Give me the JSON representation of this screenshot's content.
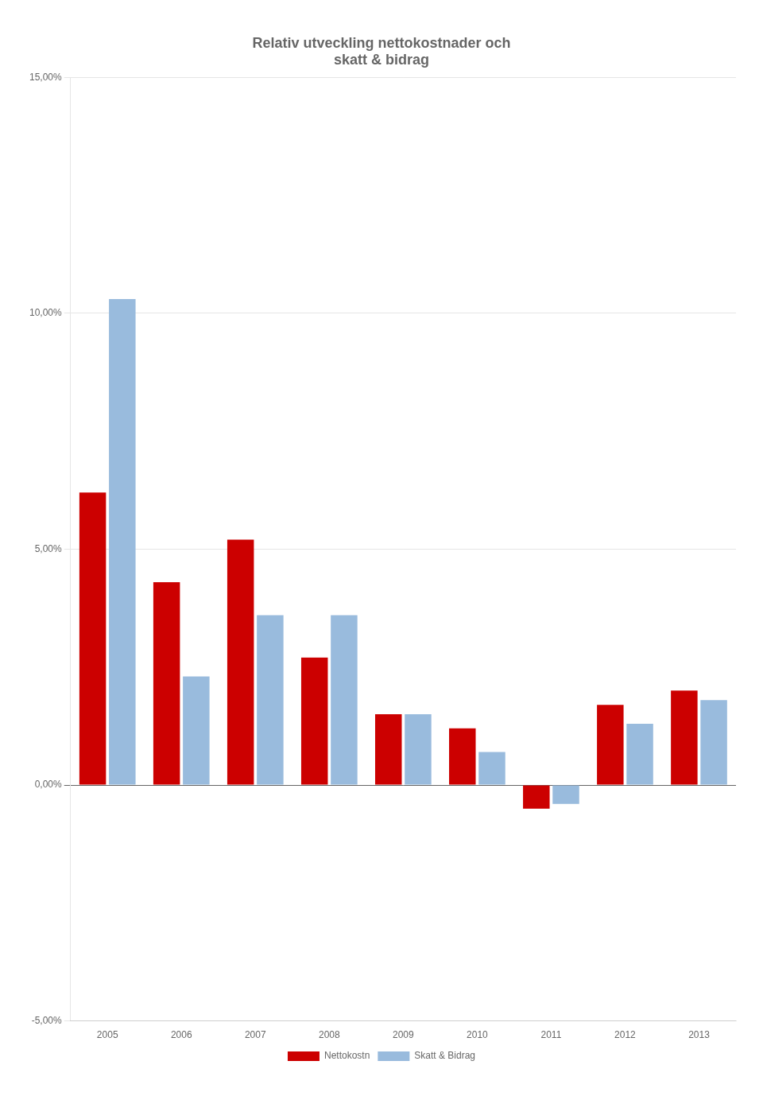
{
  "chart_data": {
    "type": "bar",
    "title": [
      "Relativ utveckling nettokostnader och",
      "skatt & bidrag"
    ],
    "categories": [
      "2005",
      "2006",
      "2007",
      "2008",
      "2009",
      "2010",
      "2011",
      "2012",
      "2013"
    ],
    "series": [
      {
        "name": "Nettokostn",
        "color": "#cc0000",
        "values": [
          6.2,
          4.3,
          5.2,
          2.7,
          1.5,
          1.2,
          -0.5,
          1.7,
          2.0
        ]
      },
      {
        "name": "Skatt & Bidrag",
        "color": "#99bbdd",
        "values": [
          10.3,
          2.3,
          3.6,
          3.6,
          1.5,
          0.7,
          -0.4,
          1.3,
          1.8
        ]
      }
    ],
    "ylim": [
      -5.0,
      15.0
    ],
    "yticks": [
      {
        "value": -5.0,
        "label": "-5,00%"
      },
      {
        "value": 0.0,
        "label": "0,00%"
      },
      {
        "value": 5.0,
        "label": "5,00%"
      },
      {
        "value": 10.0,
        "label": "10,00%"
      },
      {
        "value": 15.0,
        "label": "15,00%"
      }
    ],
    "grid": true,
    "legend": "bottom"
  }
}
